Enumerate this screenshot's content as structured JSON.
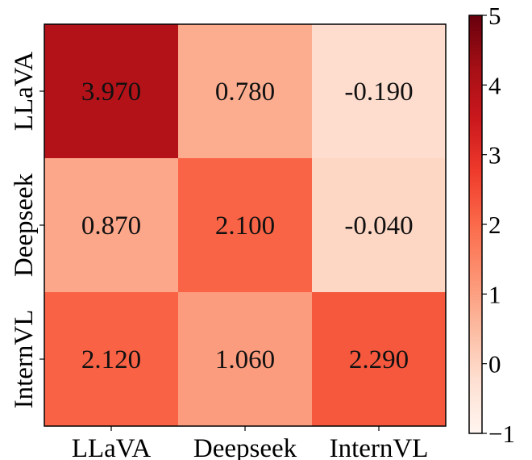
{
  "chart_data": {
    "type": "heatmap",
    "title": "",
    "xlabel": "",
    "ylabel": "",
    "x_categories": [
      "LLaVA",
      "Deepseek",
      "InternVL"
    ],
    "y_categories": [
      "LLaVA",
      "Deepseek",
      "InternVL"
    ],
    "values": [
      [
        3.97,
        0.78,
        -0.19
      ],
      [
        0.87,
        2.1,
        -0.04
      ],
      [
        2.12,
        1.06,
        2.29
      ]
    ],
    "value_labels": [
      [
        "3.970",
        "0.780",
        "-0.190"
      ],
      [
        "0.870",
        "2.100",
        "-0.040"
      ],
      [
        "2.120",
        "1.060",
        "2.290"
      ]
    ],
    "colorbar": {
      "min": -1,
      "max": 5,
      "ticks": [
        -1,
        0,
        1,
        2,
        3,
        4,
        5
      ],
      "tick_labels": [
        "−1",
        "0",
        "1",
        "2",
        "3",
        "4",
        "5"
      ],
      "colormap": "Reds",
      "colors": [
        "#fff5f0",
        "#fee0d2",
        "#fcbba1",
        "#fc9272",
        "#fb6a4a",
        "#ef3b2c",
        "#cb181d",
        "#a50f15",
        "#67000d"
      ]
    }
  }
}
